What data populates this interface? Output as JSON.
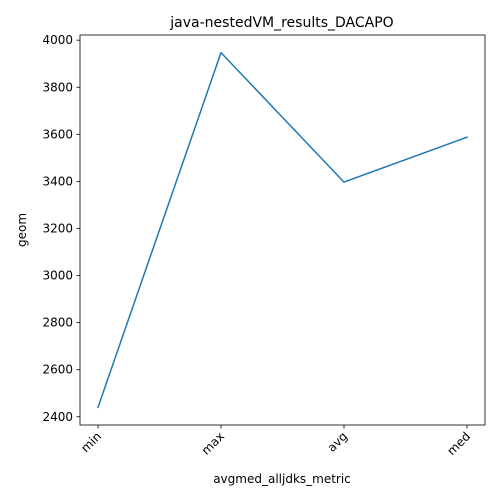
{
  "chart_data": {
    "type": "line",
    "title": "java-nestedVM_results_DACAPO",
    "xlabel": "avgmed_alljdks_metric",
    "ylabel": "geom",
    "categories": [
      "min",
      "max",
      "avg",
      "med"
    ],
    "series": [
      {
        "values": [
          2440,
          3947,
          3397,
          3588
        ],
        "color": "#1f77b4"
      }
    ],
    "yticks": [
      2400,
      2600,
      2800,
      3000,
      3200,
      3400,
      3600,
      3800,
      4000
    ],
    "ylim": [
      2365,
      4022
    ],
    "grid": false,
    "legend": "none"
  }
}
